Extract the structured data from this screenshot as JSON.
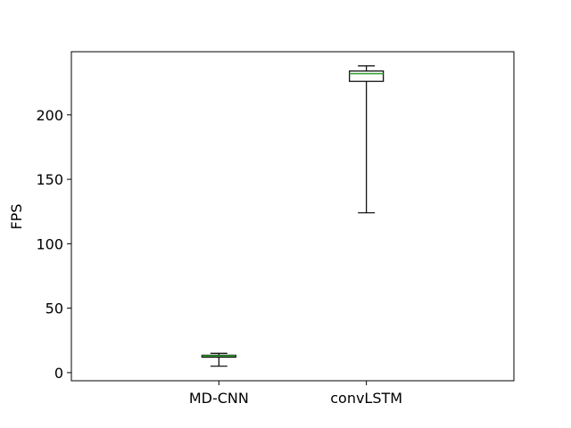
{
  "chart_data": {
    "type": "box",
    "ylabel": "FPS",
    "ylim": [
      -6.3,
      249
    ],
    "yticks": [
      0,
      50,
      100,
      150,
      200
    ],
    "categories": [
      "MD-CNN",
      "convLSTM"
    ],
    "boxes": [
      {
        "name": "MD-CNN",
        "whisker_low": 5,
        "q1": 12,
        "median": 13,
        "q3": 13.5,
        "whisker_high": 15
      },
      {
        "name": "convLSTM",
        "whisker_low": 124,
        "q1": 226,
        "median": 232,
        "q3": 234,
        "whisker_high": 238
      }
    ],
    "grid": false,
    "colors": {
      "box": "#000000",
      "median": "#2ca02c"
    }
  }
}
